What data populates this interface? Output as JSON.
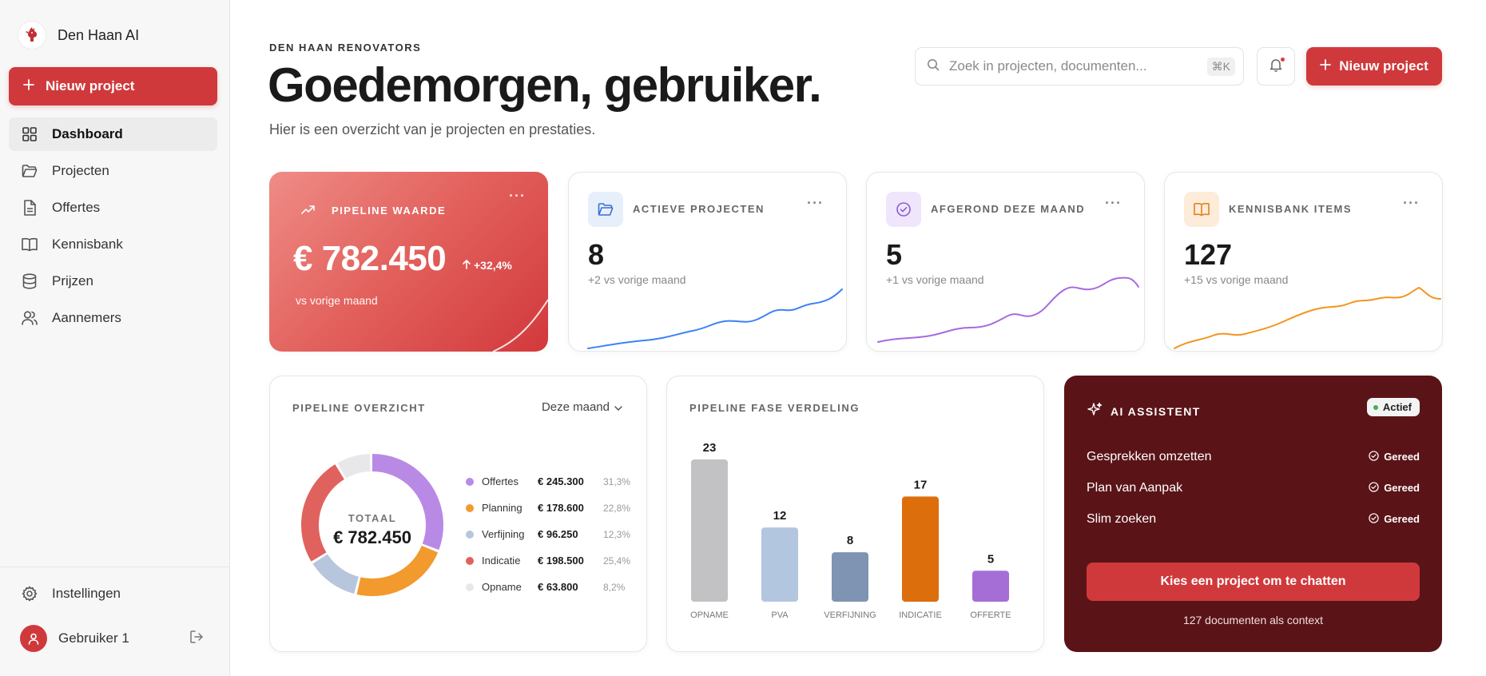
{
  "app": {
    "name": "Den Haan AI"
  },
  "sidebar": {
    "new_project_label": "Nieuw project",
    "items": [
      {
        "label": "Dashboard",
        "icon": "grid-icon",
        "active": true
      },
      {
        "label": "Projecten",
        "icon": "folder-icon"
      },
      {
        "label": "Offertes",
        "icon": "document-icon"
      },
      {
        "label": "Kennisbank",
        "icon": "book-icon"
      },
      {
        "label": "Prijzen",
        "icon": "database-icon"
      },
      {
        "label": "Aannemers",
        "icon": "users-icon"
      }
    ],
    "settings_label": "Instellingen",
    "user_name": "Gebruiker 1"
  },
  "header": {
    "eyebrow": "DEN HAAN RENOVATORS",
    "title": "Goedemorgen, gebruiker.",
    "subtitle": "Hier is een overzicht van je projecten en prestaties.",
    "search_placeholder": "Zoek in projecten, documenten...",
    "search_shortcut": "⌘K",
    "new_project_label": "Nieuw project"
  },
  "kpis": {
    "pipeline": {
      "label": "PIPELINE WAARDE",
      "value": "€ 782.450",
      "change": "+32,4%",
      "sub": "vs vorige maand"
    },
    "active": {
      "label": "ACTIEVE PROJECTEN",
      "value": "8",
      "sub": "+2 vs vorige maand",
      "color": "#3b82f6"
    },
    "completed": {
      "label": "AFGEROND DEZE MAAND",
      "value": "5",
      "sub": "+1 vs vorige maand",
      "color": "#a66be0"
    },
    "knowledge": {
      "label": "KENNISBANK ITEMS",
      "value": "127",
      "sub": "+15 vs vorige maand",
      "color": "#f29520"
    }
  },
  "pipeline_overview": {
    "title": "PIPELINE OVERZICHT",
    "period": "Deze maand",
    "total_label": "TOTAAL",
    "total_value": "€ 782.450",
    "segments": [
      {
        "name": "Offertes",
        "value": "€ 245.300",
        "pct": "31,3%",
        "color": "#b98ae5"
      },
      {
        "name": "Planning",
        "value": "€ 178.600",
        "pct": "22,8%",
        "color": "#f29a2e"
      },
      {
        "name": "Verfijning",
        "value": "€ 96.250",
        "pct": "12,3%",
        "color": "#b7c5dd"
      },
      {
        "name": "Indicatie",
        "value": "€ 198.500",
        "pct": "25,4%",
        "color": "#e0625e"
      },
      {
        "name": "Opname",
        "value": "€ 63.800",
        "pct": "8,2%",
        "color": "#e8e8ea"
      }
    ]
  },
  "chart_data": {
    "type": "bar",
    "title": "PIPELINE FASE VERDELING",
    "categories": [
      "OPNAME",
      "PVA",
      "VERFIJNING",
      "INDICATIE",
      "OFFERTE"
    ],
    "values": [
      23,
      12,
      8,
      17,
      5
    ],
    "colors": [
      "#c2c2c4",
      "#b3c6e0",
      "#7f94b3",
      "#dc6e0c",
      "#a56ed6"
    ]
  },
  "ai": {
    "title": "AI ASSISTENT",
    "badge": "Actief",
    "features": [
      {
        "label": "Gesprekken omzetten",
        "status": "Gereed"
      },
      {
        "label": "Plan van Aanpak",
        "status": "Gereed"
      },
      {
        "label": "Slim zoeken",
        "status": "Gereed"
      }
    ],
    "cta": "Kies een project om te chatten",
    "footnote": "127 documenten als context"
  }
}
